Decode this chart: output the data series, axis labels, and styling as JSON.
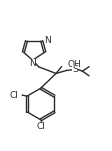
{
  "bg_color": "#ffffff",
  "line_color": "#2a2a2a",
  "lw": 1.0,
  "fs": 6.5,
  "xlim": [
    0,
    11
  ],
  "ylim": [
    0,
    14
  ],
  "figsize": [
    1.12,
    1.51
  ],
  "dpi": 100
}
